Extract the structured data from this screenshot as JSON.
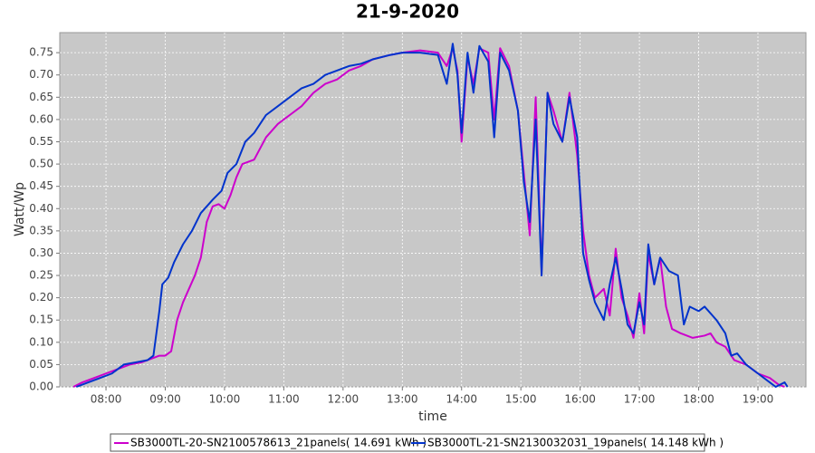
{
  "chart_data": {
    "type": "line",
    "title": "21-9-2020",
    "x_label": "time",
    "y_label": "Watt/Wp",
    "xlim": [
      7.22,
      19.81
    ],
    "ylim": [
      0,
      0.795
    ],
    "xticks": [
      {
        "value": 8,
        "label": "08:00"
      },
      {
        "value": 9,
        "label": "09:00"
      },
      {
        "value": 10,
        "label": "10:00"
      },
      {
        "value": 11,
        "label": "11:00"
      },
      {
        "value": 12,
        "label": "12:00"
      },
      {
        "value": 13,
        "label": "13:00"
      },
      {
        "value": 14,
        "label": "14:00"
      },
      {
        "value": 15,
        "label": "15:00"
      },
      {
        "value": 16,
        "label": "16:00"
      },
      {
        "value": 17,
        "label": "17:00"
      },
      {
        "value": 18,
        "label": "18:00"
      },
      {
        "value": 19,
        "label": "19:00"
      }
    ],
    "yticks": [
      {
        "value": 0,
        "label": "0.00"
      },
      {
        "value": 0.05,
        "label": "0.05"
      },
      {
        "value": 0.1,
        "label": "0.10"
      },
      {
        "value": 0.15,
        "label": "0.15"
      },
      {
        "value": 0.2,
        "label": "0.20"
      },
      {
        "value": 0.25,
        "label": "0.25"
      },
      {
        "value": 0.3,
        "label": "0.30"
      },
      {
        "value": 0.35,
        "label": "0.35"
      },
      {
        "value": 0.4,
        "label": "0.40"
      },
      {
        "value": 0.45,
        "label": "0.45"
      },
      {
        "value": 0.5,
        "label": "0.50"
      },
      {
        "value": 0.55,
        "label": "0.55"
      },
      {
        "value": 0.6,
        "label": "0.60"
      },
      {
        "value": 0.65,
        "label": "0.65"
      },
      {
        "value": 0.7,
        "label": "0.70"
      },
      {
        "value": 0.75,
        "label": "0.75"
      }
    ],
    "grid": true,
    "series": [
      {
        "name": "SB3000TL-20-SN2100578613_21panels( 14.691 kWh )",
        "color": "#cc00cc",
        "x": [
          7.45,
          7.6,
          7.8,
          8.0,
          8.2,
          8.4,
          8.6,
          8.8,
          8.9,
          9.0,
          9.1,
          9.2,
          9.3,
          9.4,
          9.5,
          9.6,
          9.7,
          9.8,
          9.9,
          10.0,
          10.1,
          10.2,
          10.3,
          10.5,
          10.7,
          10.9,
          11.1,
          11.3,
          11.5,
          11.7,
          11.9,
          12.1,
          12.3,
          12.5,
          12.8,
          13.0,
          13.3,
          13.6,
          13.75,
          13.85,
          13.93,
          14.0,
          14.1,
          14.2,
          14.3,
          14.45,
          14.55,
          14.65,
          14.8,
          14.95,
          15.05,
          15.15,
          15.25,
          15.35,
          15.45,
          15.55,
          15.7,
          15.82,
          15.95,
          16.05,
          16.15,
          16.25,
          16.4,
          16.5,
          16.6,
          16.7,
          16.8,
          16.9,
          17.0,
          17.08,
          17.15,
          17.25,
          17.35,
          17.45,
          17.55,
          17.7,
          17.9,
          18.1,
          18.2,
          18.3,
          18.45,
          18.6,
          18.8,
          19.0,
          19.2,
          19.35,
          19.45
        ],
        "values": [
          0,
          0.01,
          0.02,
          0.03,
          0.04,
          0.05,
          0.055,
          0.065,
          0.07,
          0.07,
          0.08,
          0.15,
          0.19,
          0.22,
          0.25,
          0.29,
          0.37,
          0.405,
          0.41,
          0.4,
          0.43,
          0.47,
          0.5,
          0.51,
          0.56,
          0.59,
          0.61,
          0.63,
          0.66,
          0.68,
          0.69,
          0.71,
          0.72,
          0.735,
          0.745,
          0.75,
          0.755,
          0.75,
          0.72,
          0.76,
          0.71,
          0.55,
          0.74,
          0.68,
          0.76,
          0.75,
          0.6,
          0.76,
          0.72,
          0.62,
          0.48,
          0.34,
          0.65,
          0.26,
          0.66,
          0.62,
          0.55,
          0.66,
          0.52,
          0.35,
          0.25,
          0.2,
          0.22,
          0.16,
          0.31,
          0.2,
          0.16,
          0.11,
          0.21,
          0.12,
          0.3,
          0.23,
          0.29,
          0.18,
          0.13,
          0.12,
          0.11,
          0.115,
          0.12,
          0.1,
          0.09,
          0.06,
          0.05,
          0.03,
          0.02,
          0.005,
          0
        ]
      },
      {
        "name": "SB3000TL-21-SN2130032031_19panels( 14.148 kWh )",
        "color": "#0033cc",
        "x": [
          7.5,
          7.7,
          7.9,
          8.1,
          8.3,
          8.5,
          8.7,
          8.8,
          8.85,
          8.9,
          8.95,
          9.05,
          9.15,
          9.3,
          9.45,
          9.6,
          9.8,
          9.95,
          10.05,
          10.2,
          10.35,
          10.5,
          10.7,
          10.9,
          11.1,
          11.3,
          11.5,
          11.7,
          11.9,
          12.1,
          12.3,
          12.5,
          12.8,
          13.0,
          13.3,
          13.6,
          13.75,
          13.85,
          13.93,
          14.0,
          14.1,
          14.2,
          14.3,
          14.45,
          14.55,
          14.65,
          14.8,
          14.95,
          15.05,
          15.15,
          15.25,
          15.35,
          15.45,
          15.55,
          15.7,
          15.82,
          15.95,
          16.05,
          16.15,
          16.25,
          16.4,
          16.5,
          16.6,
          16.7,
          16.8,
          16.9,
          17.0,
          17.08,
          17.15,
          17.25,
          17.35,
          17.5,
          17.65,
          17.75,
          17.85,
          18.0,
          18.1,
          18.3,
          18.45,
          18.55,
          18.65,
          18.8,
          19.0,
          19.2,
          19.3,
          19.45,
          19.5
        ],
        "values": [
          0,
          0.01,
          0.02,
          0.03,
          0.05,
          0.055,
          0.06,
          0.07,
          0.12,
          0.17,
          0.23,
          0.245,
          0.28,
          0.32,
          0.35,
          0.39,
          0.42,
          0.44,
          0.48,
          0.5,
          0.55,
          0.57,
          0.61,
          0.63,
          0.65,
          0.67,
          0.68,
          0.7,
          0.71,
          0.72,
          0.725,
          0.735,
          0.745,
          0.75,
          0.75,
          0.745,
          0.68,
          0.77,
          0.7,
          0.57,
          0.75,
          0.66,
          0.765,
          0.73,
          0.56,
          0.75,
          0.71,
          0.62,
          0.46,
          0.37,
          0.6,
          0.25,
          0.66,
          0.59,
          0.55,
          0.65,
          0.56,
          0.3,
          0.24,
          0.19,
          0.15,
          0.23,
          0.29,
          0.22,
          0.14,
          0.12,
          0.19,
          0.14,
          0.32,
          0.23,
          0.29,
          0.26,
          0.25,
          0.14,
          0.18,
          0.17,
          0.18,
          0.15,
          0.12,
          0.07,
          0.075,
          0.05,
          0.03,
          0.01,
          0,
          0.01,
          0
        ]
      }
    ]
  }
}
